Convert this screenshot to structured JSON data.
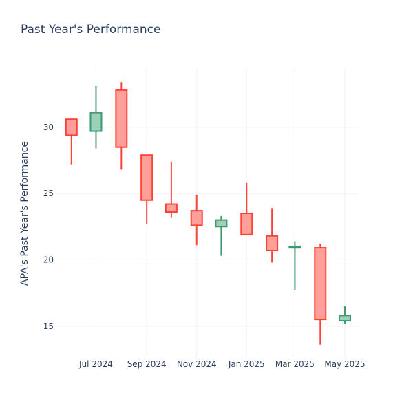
{
  "chart_data": {
    "type": "candlestick",
    "title": "Past Year's Performance",
    "ylabel": "APA's Past Year's Performance",
    "xlabel": "",
    "ylim": [
      12.6,
      34.4
    ],
    "y_ticks": [
      15,
      20,
      25,
      30
    ],
    "x_ticks": [
      "Jul 2024",
      "Sep 2024",
      "Nov 2024",
      "Jan 2025",
      "Mar 2025",
      "May 2025"
    ],
    "x_tick_dates": [
      "2024-07-01",
      "2024-09-01",
      "2024-11-01",
      "2025-01-01",
      "2025-03-01",
      "2025-05-01"
    ],
    "x_range": [
      "2024-05-12",
      "2025-05-17"
    ],
    "grid": true,
    "colors": {
      "increasing": "#3d9970",
      "decreasing": "#ff4136",
      "grid": "#eef0f4"
    },
    "candles": [
      {
        "date": "2024-06-01",
        "open": 30.6,
        "high": 30.6,
        "low": 27.2,
        "close": 29.4
      },
      {
        "date": "2024-07-01",
        "open": 29.7,
        "high": 33.1,
        "low": 28.4,
        "close": 31.1
      },
      {
        "date": "2024-08-01",
        "open": 32.8,
        "high": 33.4,
        "low": 26.8,
        "close": 28.5
      },
      {
        "date": "2024-09-01",
        "open": 27.9,
        "high": 27.9,
        "low": 22.7,
        "close": 24.5
      },
      {
        "date": "2024-10-01",
        "open": 24.2,
        "high": 27.4,
        "low": 23.2,
        "close": 23.6
      },
      {
        "date": "2024-11-01",
        "open": 23.7,
        "high": 24.9,
        "low": 21.1,
        "close": 22.6
      },
      {
        "date": "2024-12-01",
        "open": 22.5,
        "high": 23.3,
        "low": 20.3,
        "close": 23.0
      },
      {
        "date": "2025-01-01",
        "open": 23.5,
        "high": 25.8,
        "low": 21.9,
        "close": 21.9
      },
      {
        "date": "2025-02-01",
        "open": 21.8,
        "high": 23.9,
        "low": 19.8,
        "close": 20.7
      },
      {
        "date": "2025-03-01",
        "open": 20.9,
        "high": 21.4,
        "low": 17.7,
        "close": 21.0
      },
      {
        "date": "2025-04-01",
        "open": 20.9,
        "high": 21.2,
        "low": 13.6,
        "close": 15.5
      },
      {
        "date": "2025-05-01",
        "open": 15.4,
        "high": 16.5,
        "low": 15.2,
        "close": 15.8
      }
    ]
  }
}
